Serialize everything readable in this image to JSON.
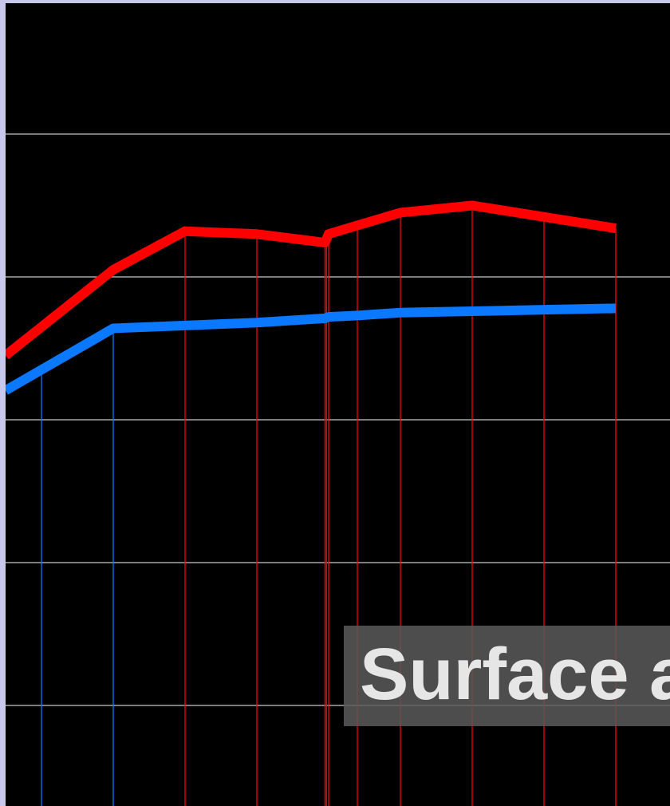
{
  "chart_data": {
    "type": "line",
    "title": "",
    "xlabel": "",
    "ylabel": "",
    "xlim": [
      -0.5,
      8.75
    ],
    "ylim": [
      0,
      5.6
    ],
    "grid": true,
    "x": [
      0.0,
      1.0,
      2.0,
      3.0,
      3.95,
      4.0,
      4.4,
      5.0,
      6.0,
      7.0,
      8.0
    ],
    "series": [
      {
        "name": "",
        "color": "#ff0000",
        "values": [
          3.65,
          4.05,
          4.32,
          4.3,
          4.24,
          4.3,
          4.36,
          4.45,
          4.5,
          4.42,
          4.34
        ],
        "drop_x": [
          2.0,
          3.0,
          3.95,
          3.97,
          4.0,
          4.4,
          5.0,
          6.0,
          7.0,
          8.0
        ]
      },
      {
        "name": "",
        "color": "#0a78ff",
        "values": [
          3.35,
          3.64,
          3.66,
          3.68,
          3.71,
          3.72,
          3.73,
          3.75,
          3.76,
          3.77,
          3.78
        ],
        "drop_x": [
          0.0,
          1.0
        ]
      }
    ],
    "colors": {
      "background": "#000000",
      "gridline": "#c8c8c8",
      "frame": "#c8c8ec"
    }
  },
  "overlay": {
    "caption": "Surface a"
  }
}
